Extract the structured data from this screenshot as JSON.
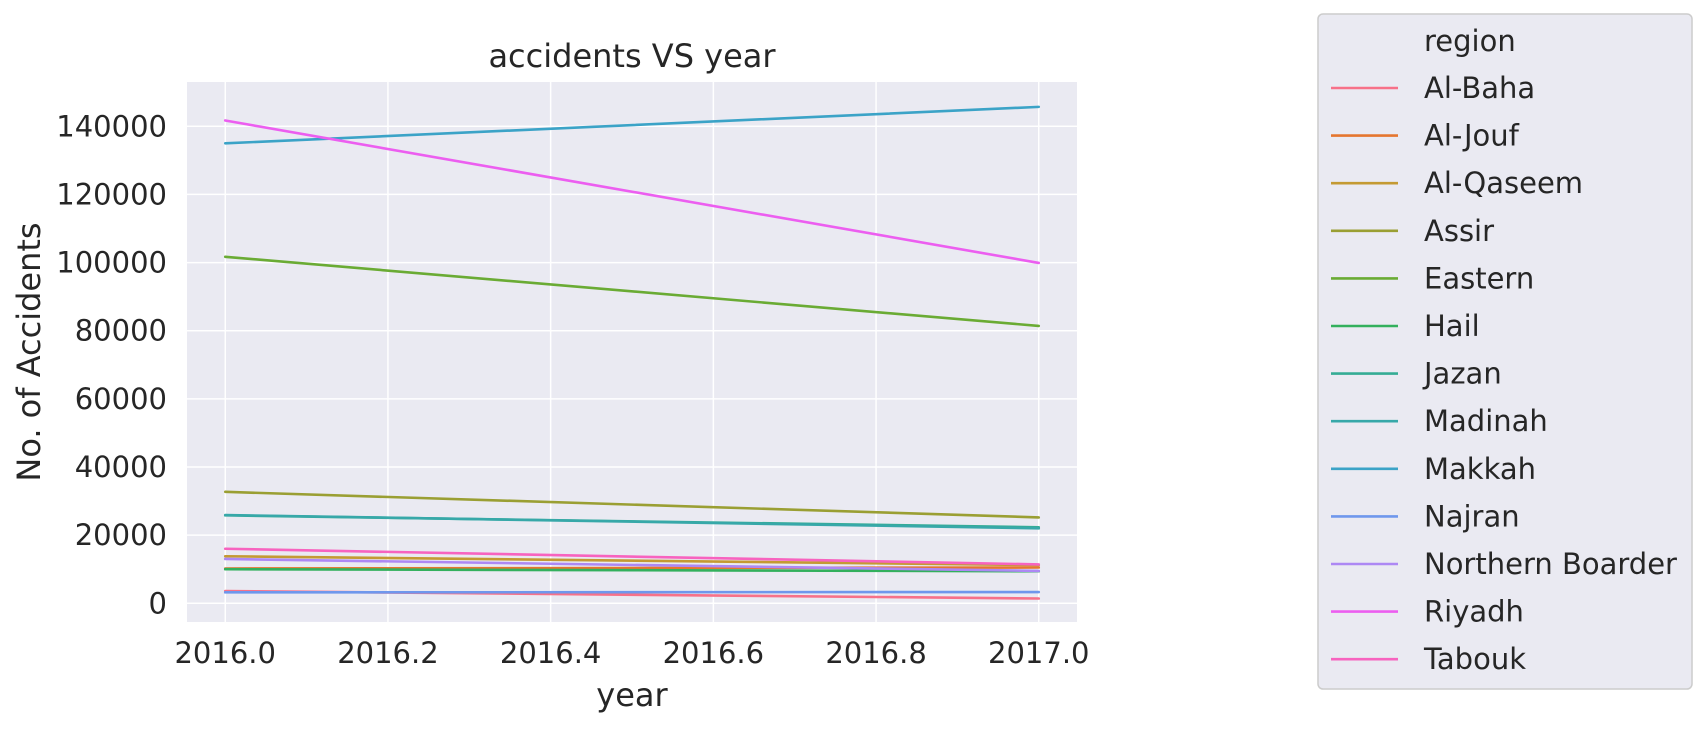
{
  "chart_data": {
    "type": "line",
    "title": "accidents VS year",
    "xlabel": "year",
    "ylabel": "No. of Accidents",
    "x": [
      2016,
      2017
    ],
    "xlim": [
      2015.953,
      2017.047
    ],
    "ylim": [
      -5500,
      153000
    ],
    "xticks": [
      "2016.0",
      "2016.2",
      "2016.4",
      "2016.6",
      "2016.8",
      "2017.0"
    ],
    "xtick_values": [
      2016.0,
      2016.2,
      2016.4,
      2016.6,
      2016.8,
      2017.0
    ],
    "yticks": [
      "0",
      "20000",
      "40000",
      "60000",
      "80000",
      "100000",
      "120000",
      "140000"
    ],
    "ytick_values": [
      0,
      20000,
      40000,
      60000,
      80000,
      100000,
      120000,
      140000
    ],
    "grid": true,
    "background": "#eaeaf2",
    "legend": {
      "title": "region",
      "placement": "outside-right"
    },
    "series": [
      {
        "name": "Al-Baha",
        "color": "#f77189",
        "values": [
          3600,
          1400
        ]
      },
      {
        "name": "Al-Jouf",
        "color": "#e5762f",
        "values": [
          10200,
          10500
        ]
      },
      {
        "name": "Al-Qaseem",
        "color": "#c49a33",
        "values": [
          13800,
          11200
        ]
      },
      {
        "name": "Assir",
        "color": "#9a9f33",
        "values": [
          32700,
          25200
        ]
      },
      {
        "name": "Eastern",
        "color": "#6aab34",
        "values": [
          101700,
          81400
        ]
      },
      {
        "name": "Hail",
        "color": "#33b05d",
        "values": [
          10000,
          9400
        ]
      },
      {
        "name": "Jazan",
        "color": "#35ac95",
        "values": [
          25800,
          22300
        ]
      },
      {
        "name": "Madinah",
        "color": "#37a8a9",
        "values": [
          25900,
          22000
        ]
      },
      {
        "name": "Makkah",
        "color": "#3ba3c7",
        "values": [
          135000,
          145700
        ]
      },
      {
        "name": "Najran",
        "color": "#6f97ec",
        "values": [
          3200,
          3300
        ]
      },
      {
        "name": "Northern Boarder",
        "color": "#ad88f4",
        "values": [
          13000,
          9500
        ]
      },
      {
        "name": "Riyadh",
        "color": "#ec5ef0",
        "values": [
          141700,
          99900
        ]
      },
      {
        "name": "Tabouk",
        "color": "#f763bf",
        "values": [
          16000,
          11400
        ]
      }
    ]
  }
}
